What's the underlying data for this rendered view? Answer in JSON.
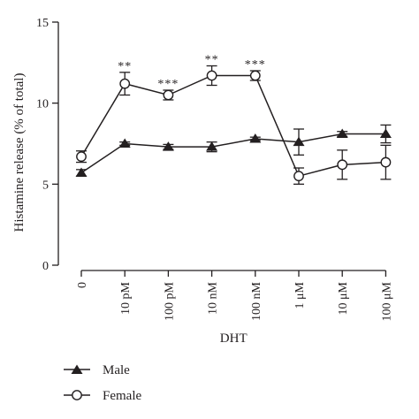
{
  "chart_data": {
    "type": "line",
    "title": "",
    "xlabel": "DHT",
    "ylabel": "Histamine release (% of total)",
    "ylim": [
      0,
      15
    ],
    "yticks": [
      "0",
      "5",
      "10",
      "15"
    ],
    "categories": [
      "0",
      "10 pM",
      "100 pM",
      "10 nM",
      "100 nM",
      "1 μM",
      "10 μM",
      "100 μM"
    ],
    "series": [
      {
        "name": "Male",
        "marker": "filled-triangle",
        "values": [
          5.7,
          7.5,
          7.3,
          7.3,
          7.8,
          7.6,
          8.1,
          8.1
        ],
        "errors": [
          0.2,
          0.1,
          0.15,
          0.3,
          0.1,
          0.8,
          0.15,
          0.55
        ]
      },
      {
        "name": "Female",
        "marker": "open-circle",
        "values": [
          6.7,
          11.2,
          10.5,
          11.7,
          11.7,
          5.5,
          6.2,
          6.35
        ],
        "errors": [
          0.35,
          0.7,
          0.3,
          0.6,
          0.3,
          0.5,
          0.9,
          1.05
        ]
      }
    ],
    "significance": [
      "",
      "**",
      "***",
      "**",
      "***",
      "",
      "",
      ""
    ],
    "legend_position": "bottom-left",
    "grid": false
  }
}
